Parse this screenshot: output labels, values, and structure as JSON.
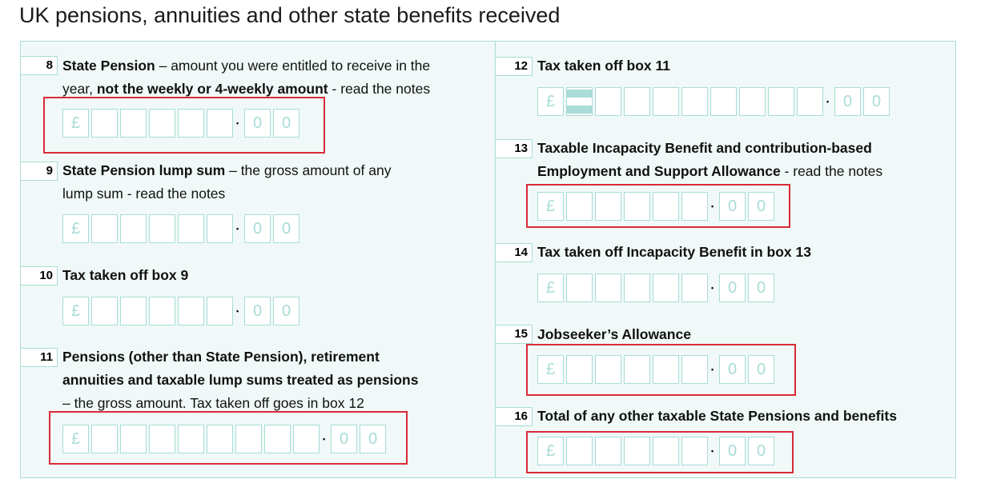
{
  "title": "UK pensions, annuities and other state benefits received",
  "currency_symbol": "£",
  "pence": [
    "0",
    "0"
  ],
  "colors": {
    "accent": "#a8dcd6",
    "highlight": "#d92b35",
    "panel_bg": "#f0f9f8"
  },
  "boxes": [
    {
      "number": "8",
      "lines": [
        {
          "bold": "State Pension",
          "rest": " – amount you were entitled to receive in the"
        },
        {
          "pre": "year, ",
          "bold": "not the weekly or 4-weekly amount",
          "rest": " - read the notes"
        }
      ]
    },
    {
      "number": "9",
      "lines": [
        {
          "bold": "State Pension lump sum",
          "rest": " – the gross amount of any"
        },
        {
          "rest": "lump sum - read the notes"
        }
      ]
    },
    {
      "number": "10",
      "lines": [
        {
          "bold": "Tax taken off box 9"
        }
      ]
    },
    {
      "number": "11",
      "lines": [
        {
          "bold": "Pensions (other than State Pension), retirement"
        },
        {
          "bold": "annuities and taxable lump sums treated as pensions"
        },
        {
          "rest": "– the gross amount. Tax taken off goes in box 12"
        }
      ]
    },
    {
      "number": "12",
      "lines": [
        {
          "bold": "Tax taken off box 11"
        }
      ]
    },
    {
      "number": "13",
      "lines": [
        {
          "bold": "Taxable Incapacity Benefit and contribution-based"
        },
        {
          "bold": "Employment and Support Allowance",
          "rest": " - read the notes"
        }
      ]
    },
    {
      "number": "14",
      "lines": [
        {
          "bold": "Tax taken off Incapacity Benefit in box 13"
        }
      ]
    },
    {
      "number": "15",
      "lines": [
        {
          "bold": "Jobseeker’s Allowance"
        }
      ]
    },
    {
      "number": "16",
      "lines": [
        {
          "bold": "Total of any other taxable State Pensions and benefits"
        }
      ]
    }
  ]
}
